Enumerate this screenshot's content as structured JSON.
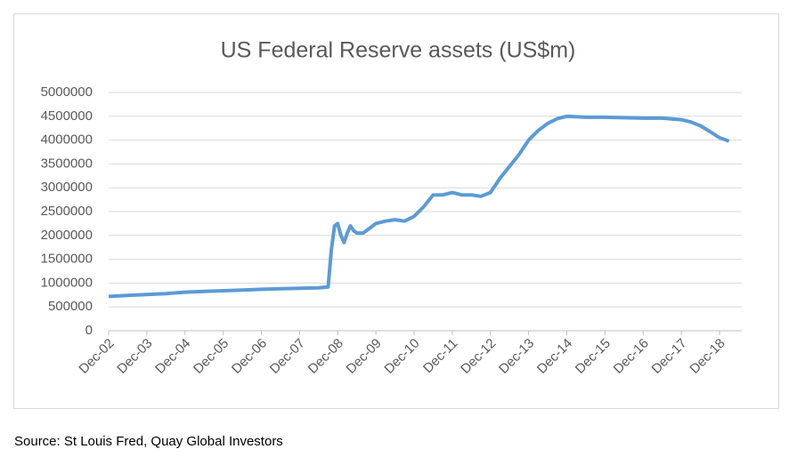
{
  "chart_data": {
    "type": "line",
    "title": "US Federal Reserve assets (US$m)",
    "x": [
      "2002-12",
      "2003-06",
      "2003-12",
      "2004-06",
      "2004-12",
      "2005-06",
      "2005-12",
      "2006-06",
      "2006-12",
      "2007-06",
      "2007-12",
      "2008-06",
      "2008-09",
      "2008-10",
      "2008-11",
      "2008-12",
      "2009-01",
      "2009-02",
      "2009-03",
      "2009-04",
      "2009-05",
      "2009-06",
      "2009-08",
      "2009-10",
      "2009-12",
      "2010-03",
      "2010-06",
      "2010-09",
      "2010-12",
      "2011-03",
      "2011-06",
      "2011-09",
      "2011-12",
      "2012-03",
      "2012-06",
      "2012-09",
      "2012-12",
      "2013-03",
      "2013-06",
      "2013-09",
      "2013-12",
      "2014-03",
      "2014-06",
      "2014-09",
      "2014-12",
      "2015-06",
      "2015-12",
      "2016-06",
      "2016-12",
      "2017-06",
      "2017-12",
      "2018-03",
      "2018-06",
      "2018-09",
      "2018-12",
      "2019-03"
    ],
    "series": [
      {
        "name": "US Federal Reserve assets",
        "color": "#5b9bd5",
        "values": [
          720000,
          740000,
          760000,
          780000,
          810000,
          825000,
          840000,
          855000,
          870000,
          880000,
          890000,
          900000,
          920000,
          1700000,
          2200000,
          2250000,
          2000000,
          1850000,
          2050000,
          2200000,
          2100000,
          2050000,
          2050000,
          2150000,
          2250000,
          2300000,
          2330000,
          2300000,
          2400000,
          2600000,
          2850000,
          2850000,
          2900000,
          2850000,
          2850000,
          2820000,
          2900000,
          3200000,
          3450000,
          3700000,
          4000000,
          4200000,
          4350000,
          4450000,
          4500000,
          4480000,
          4480000,
          4470000,
          4460000,
          4460000,
          4430000,
          4380000,
          4300000,
          4180000,
          4050000,
          3980000
        ]
      }
    ],
    "xlim": [
      "2002-12",
      "2019-07"
    ],
    "xticks": [
      {
        "value": "2002-12",
        "label": "Dec-02"
      },
      {
        "value": "2003-12",
        "label": "Dec-03"
      },
      {
        "value": "2004-12",
        "label": "Dec-04"
      },
      {
        "value": "2005-12",
        "label": "Dec-05"
      },
      {
        "value": "2006-12",
        "label": "Dec-06"
      },
      {
        "value": "2007-12",
        "label": "Dec-07"
      },
      {
        "value": "2008-12",
        "label": "Dec-08"
      },
      {
        "value": "2009-12",
        "label": "Dec-09"
      },
      {
        "value": "2010-12",
        "label": "Dec-10"
      },
      {
        "value": "2011-12",
        "label": "Dec-11"
      },
      {
        "value": "2012-12",
        "label": "Dec-12"
      },
      {
        "value": "2013-12",
        "label": "Dec-13"
      },
      {
        "value": "2014-12",
        "label": "Dec-14"
      },
      {
        "value": "2015-12",
        "label": "Dec-15"
      },
      {
        "value": "2016-12",
        "label": "Dec-16"
      },
      {
        "value": "2017-12",
        "label": "Dec-17"
      },
      {
        "value": "2018-12",
        "label": "Dec-18"
      }
    ],
    "ylim": [
      0,
      5000000
    ],
    "yticks": [
      0,
      500000,
      1000000,
      1500000,
      2000000,
      2500000,
      3000000,
      3500000,
      4000000,
      4500000,
      5000000
    ],
    "grid": true
  },
  "source": "Source: St Louis Fred, Quay Global Investors"
}
